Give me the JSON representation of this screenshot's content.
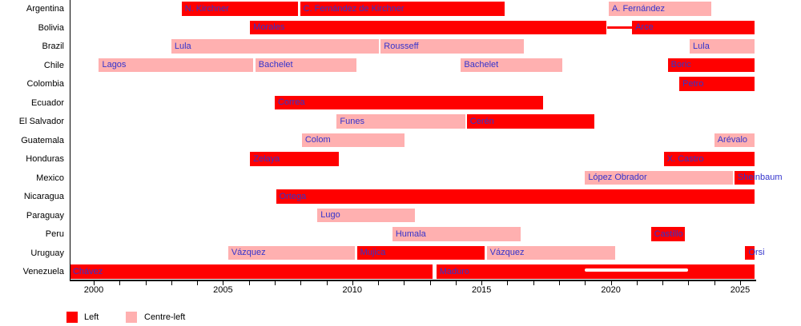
{
  "chart_data": {
    "type": "bar",
    "subtype": "gantt-timeline",
    "title": "",
    "grid": false,
    "x_axis": {
      "min": 1999.07,
      "max": 2025.6,
      "major_ticks": [
        2000,
        2005,
        2010,
        2015,
        2020,
        2025
      ],
      "minor_tick_interval": 1,
      "minor_tick_start": 2000,
      "minor_tick_end": 2025
    },
    "colors": {
      "left": "#ff0000",
      "centre_left": "#ffb0b0",
      "bar_label": "#3333cc",
      "axis": "#000000",
      "overlay": "#ffffff"
    },
    "legend": {
      "position": "bottom-left",
      "items": [
        {
          "label": "Left",
          "type": "left"
        },
        {
          "label": "Centre-left",
          "type": "centre-left"
        }
      ]
    },
    "rows": [
      {
        "country": "Argentina",
        "bars": [
          {
            "label": "N. Kirchner",
            "type": "left",
            "start": 2003.4,
            "end": 2007.93
          },
          {
            "label": "C. Fernández de Kirchner",
            "type": "left",
            "start": 2007.98,
            "end": 2015.93
          },
          {
            "label": "A. Fernández",
            "type": "centre-left",
            "start": 2019.92,
            "end": 2023.92
          }
        ]
      },
      {
        "country": "Bolivia",
        "bars": [
          {
            "label": "Morales",
            "type": "left",
            "start": 2006.05,
            "end": 2019.86
          },
          {
            "label": "Arce",
            "type": "left",
            "start": 2020.82,
            "end": 2025.6
          }
        ],
        "connector_line": {
          "start": 2019.86,
          "end": 2020.82,
          "type": "left"
        }
      },
      {
        "country": "Brazil",
        "bars": [
          {
            "label": "Lula",
            "type": "centre-left",
            "start": 2003.0,
            "end": 2011.05
          },
          {
            "label": "Rousseff",
            "type": "centre-left",
            "start": 2011.1,
            "end": 2016.66
          },
          {
            "label": "Lula",
            "type": "centre-left",
            "start": 2023.05,
            "end": 2025.6
          }
        ]
      },
      {
        "country": "Chile",
        "bars": [
          {
            "label": "Lagos",
            "type": "centre-left",
            "start": 2000.2,
            "end": 2006.2
          },
          {
            "label": "Bachelet",
            "type": "centre-left",
            "start": 2006.25,
            "end": 2010.2
          },
          {
            "label": "Bachelet",
            "type": "centre-left",
            "start": 2014.2,
            "end": 2018.15
          },
          {
            "label": "Boric",
            "type": "left",
            "start": 2022.2,
            "end": 2025.6
          }
        ]
      },
      {
        "country": "Colombia",
        "bars": [
          {
            "label": "Petro",
            "type": "left",
            "start": 2022.65,
            "end": 2025.6
          }
        ]
      },
      {
        "country": "Ecuador",
        "bars": [
          {
            "label": "Correa",
            "type": "left",
            "start": 2007.0,
            "end": 2017.4
          }
        ]
      },
      {
        "country": "El Salvador",
        "bars": [
          {
            "label": "Funes",
            "type": "centre-left",
            "start": 2009.4,
            "end": 2014.4
          },
          {
            "label": "Cerén",
            "type": "left",
            "start": 2014.43,
            "end": 2019.4
          }
        ]
      },
      {
        "country": "Guatemala",
        "bars": [
          {
            "label": "Colom",
            "type": "centre-left",
            "start": 2008.05,
            "end": 2012.05
          },
          {
            "label": "Arévalo",
            "type": "centre-left",
            "start": 2024.0,
            "end": 2025.6
          }
        ]
      },
      {
        "country": "Honduras",
        "bars": [
          {
            "label": "Zelaya",
            "type": "left",
            "start": 2006.05,
            "end": 2009.5
          },
          {
            "label": "X. Castro",
            "type": "left",
            "start": 2022.05,
            "end": 2025.6
          }
        ]
      },
      {
        "country": "Mexico",
        "bars": [
          {
            "label": "López Obrador",
            "type": "centre-left",
            "start": 2019.0,
            "end": 2024.75
          },
          {
            "label": "Sheinbaum",
            "type": "left",
            "start": 2024.78,
            "end": 2025.6
          }
        ]
      },
      {
        "country": "Nicaragua",
        "bars": [
          {
            "label": "Ortega",
            "type": "left",
            "start": 2007.05,
            "end": 2025.6
          }
        ]
      },
      {
        "country": "Paraguay",
        "bars": [
          {
            "label": "Lugo",
            "type": "centre-left",
            "start": 2008.65,
            "end": 2012.45
          }
        ]
      },
      {
        "country": "Peru",
        "bars": [
          {
            "label": "Humala",
            "type": "centre-left",
            "start": 2011.55,
            "end": 2016.55
          },
          {
            "label": "Castillo",
            "type": "left",
            "start": 2021.55,
            "end": 2022.9
          }
        ]
      },
      {
        "country": "Uruguay",
        "bars": [
          {
            "label": "Vázquez",
            "type": "centre-left",
            "start": 2005.2,
            "end": 2010.13
          },
          {
            "label": "Mujica",
            "type": "left",
            "start": 2010.18,
            "end": 2015.15
          },
          {
            "label": "Vázquez",
            "type": "centre-left",
            "start": 2015.2,
            "end": 2020.2
          },
          {
            "label": "Orsi",
            "type": "left",
            "start": 2025.2,
            "end": 2025.6
          }
        ]
      },
      {
        "country": "Venezuela",
        "bars": [
          {
            "label": "Chávez",
            "type": "left",
            "start": 1999.07,
            "end": 2013.15
          },
          {
            "label": "Maduro",
            "type": "left",
            "start": 2013.25,
            "end": 2025.6
          }
        ],
        "overlay": {
          "start": 2019.0,
          "end": 2023.0
        }
      }
    ]
  }
}
